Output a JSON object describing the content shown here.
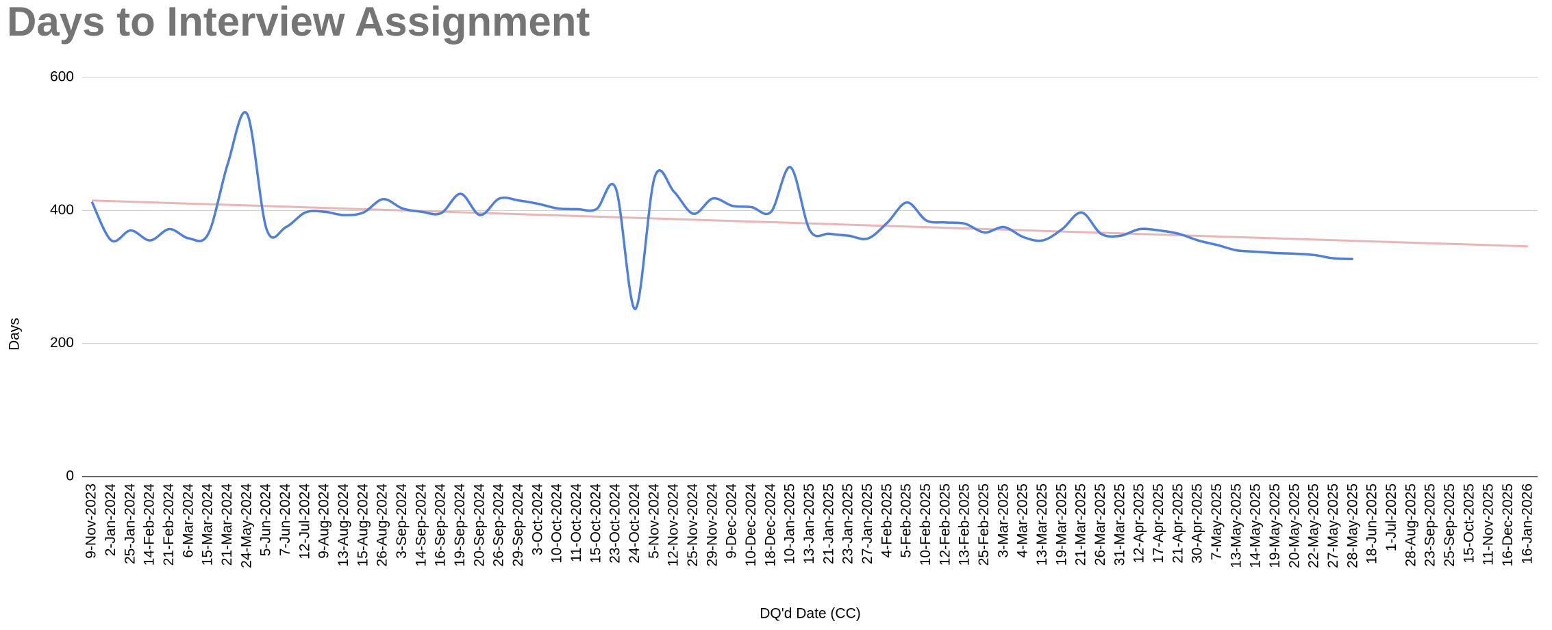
{
  "chart_data": {
    "type": "line",
    "title": "Days to Interview Assignment",
    "x_label": "DQ'd Date (CC)",
    "y_label": "Days",
    "categories": [
      "9-Nov-2023",
      "2-Jan-2024",
      "25-Jan-2024",
      "14-Feb-2024",
      "21-Feb-2024",
      "6-Mar-2024",
      "15-Mar-2024",
      "21-Mar-2024",
      "24-May-2024",
      "5-Jun-2024",
      "7-Jun-2024",
      "12-Jul-2024",
      "9-Aug-2024",
      "13-Aug-2024",
      "15-Aug-2024",
      "26-Aug-2024",
      "3-Sep-2024",
      "14-Sep-2024",
      "16-Sep-2024",
      "19-Sep-2024",
      "20-Sep-2024",
      "26-Sep-2024",
      "29-Sep-2024",
      "3-Oct-2024",
      "10-Oct-2024",
      "11-Oct-2024",
      "15-Oct-2024",
      "23-Oct-2024",
      "24-Oct-2024",
      "5-Nov-2024",
      "12-Nov-2024",
      "25-Nov-2024",
      "29-Nov-2024",
      "9-Dec-2024",
      "10-Dec-2024",
      "18-Dec-2024",
      "10-Jan-2025",
      "13-Jan-2025",
      "21-Jan-2025",
      "23-Jan-2025",
      "27-Jan-2025",
      "4-Feb-2025",
      "5-Feb-2025",
      "10-Feb-2025",
      "12-Feb-2025",
      "13-Feb-2025",
      "25-Feb-2025",
      "3-Mar-2025",
      "4-Mar-2025",
      "13-Mar-2025",
      "19-Mar-2025",
      "21-Mar-2025",
      "26-Mar-2025",
      "31-Mar-2025",
      "12-Apr-2025",
      "17-Apr-2025",
      "21-Apr-2025",
      "30-Apr-2025",
      "7-May-2025",
      "13-May-2025",
      "14-May-2025",
      "19-May-2025",
      "20-May-2025",
      "22-May-2025",
      "27-May-2025",
      "28-May-2025",
      "18-Jun-2025",
      "1-Jul-2025",
      "28-Aug-2025",
      "23-Sep-2025",
      "25-Sep-2025",
      "15-Oct-2025",
      "11-Nov-2025",
      "16-Dec-2025",
      "16-Jan-2026"
    ],
    "series": [
      {
        "color": "#4f7fdc",
        "values": [
          413,
          355,
          370,
          355,
          372,
          358,
          365,
          470,
          545,
          372,
          375,
          397,
          398,
          393,
          397,
          417,
          403,
          398,
          396,
          425,
          393,
          418,
          415,
          410,
          403,
          402,
          402,
          433,
          252,
          450,
          428,
          395,
          418,
          407,
          405,
          398,
          465,
          370,
          365,
          362,
          358,
          382,
          412,
          385,
          382,
          380,
          367,
          375,
          360,
          355,
          372,
          397,
          365,
          362,
          372,
          370,
          365,
          355,
          348,
          340,
          338,
          336,
          335,
          333,
          328,
          327,
          null,
          null,
          null,
          null,
          null,
          null,
          null,
          null,
          null
        ]
      }
    ],
    "trendline": {
      "color": "#eab5b5",
      "values": [
        415,
        346
      ]
    },
    "ylim": [
      0,
      600
    ],
    "yticks": [
      0,
      200,
      400,
      600
    ],
    "grid": true
  }
}
